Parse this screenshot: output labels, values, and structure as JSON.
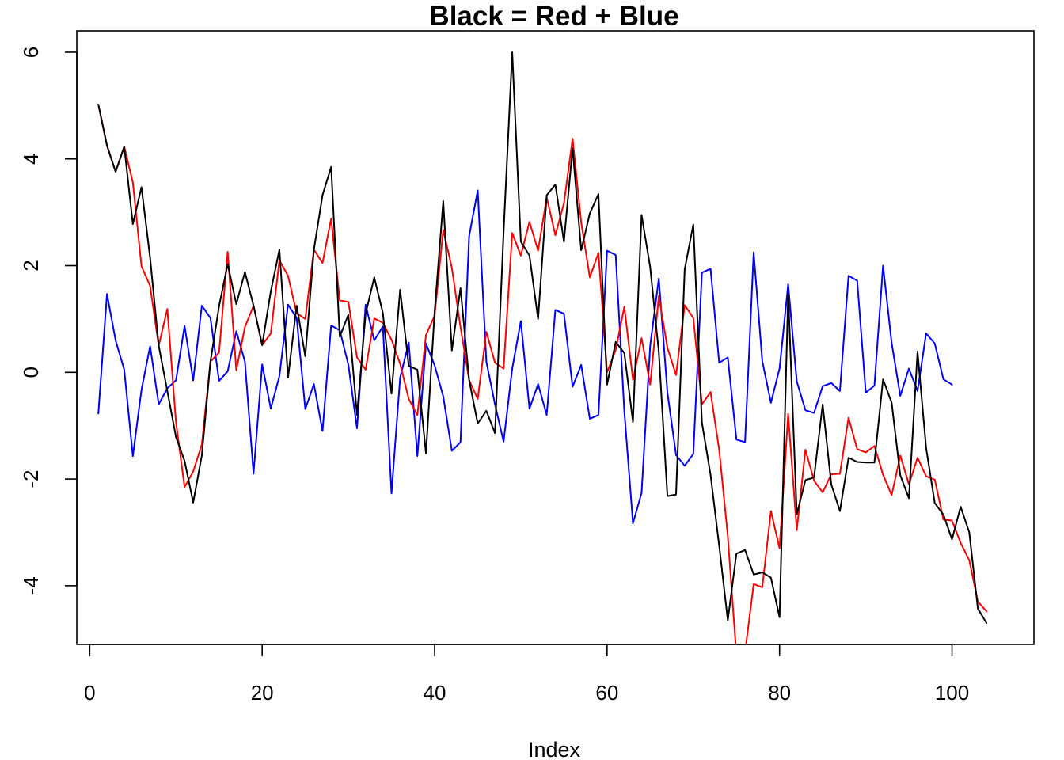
{
  "chart_data": {
    "type": "line",
    "title": "Black = Red + Blue",
    "xlabel": "Index",
    "ylabel": "",
    "xlim": [
      -1.5,
      109.5
    ],
    "ylim": [
      -5.1,
      6.4
    ],
    "x_ticks": [
      0,
      20,
      40,
      60,
      80,
      100
    ],
    "x_tick_labels": [
      "0",
      "20",
      "40",
      "60",
      "80",
      "100"
    ],
    "y_ticks": [
      -4,
      -2,
      0,
      2,
      4,
      6
    ],
    "y_tick_labels": [
      "-4",
      "-2",
      "0",
      "2",
      "4",
      "6"
    ],
    "grid": false,
    "legend": "none",
    "series": [
      {
        "color": "#0000ff",
        "x_start": 1,
        "values": [
          -0.77,
          1.47,
          0.6,
          0.05,
          -1.57,
          -0.33,
          0.49,
          -0.6,
          -0.3,
          -0.15,
          0.87,
          -0.15,
          1.25,
          1.02,
          -0.16,
          0.02,
          0.77,
          0.2,
          -1.9,
          0.15,
          -0.68,
          -0.07,
          1.27,
          1.02,
          -0.69,
          -0.22,
          -1.1,
          0.88,
          0.79,
          0.14,
          -1.05,
          1.27,
          0.6,
          0.86,
          -2.27,
          -0.1,
          0.56,
          -1.57,
          0.54,
          0.13,
          -0.45,
          -1.47,
          -1.31,
          2.55,
          3.41,
          0.2,
          -0.6,
          -1.3,
          0.07,
          0.96,
          -0.68,
          -0.22,
          -0.8,
          1.17,
          1.1,
          -0.27,
          0.14,
          -0.87,
          -0.8,
          2.28,
          2.2,
          -0.73,
          -2.83,
          -2.26,
          0.5,
          1.76,
          -0.38,
          -1.55,
          -1.75,
          -1.53,
          1.87,
          1.94,
          0.18,
          0.28,
          -1.26,
          -1.31,
          2.25,
          0.21,
          -0.57,
          0.07,
          1.65,
          -0.17,
          -0.71,
          -0.76,
          -0.26,
          -0.2,
          -0.35,
          1.81,
          1.72,
          -0.38,
          -0.25,
          2.0,
          0.55,
          -0.44,
          0.07,
          -0.35,
          0.73,
          0.54,
          -0.13,
          -0.23
        ]
      },
      {
        "color": "#ff0000",
        "x_start": 1,
        "values": [
          5.02,
          4.25,
          3.76,
          4.23,
          3.56,
          1.99,
          1.62,
          0.5,
          1.19,
          -0.93,
          -2.15,
          -1.86,
          -1.35,
          0.2,
          0.37,
          2.26,
          0.04,
          0.85,
          1.25,
          0.51,
          0.73,
          2.1,
          1.81,
          1.11,
          1.0,
          2.3,
          2.05,
          2.88,
          1.35,
          1.32,
          0.28,
          0.05,
          1.01,
          0.93,
          0.61,
          0.16,
          -0.5,
          -0.8,
          0.7,
          1.06,
          2.67,
          1.96,
          0.85,
          -0.14,
          -0.5,
          0.76,
          0.18,
          0.07,
          2.61,
          2.19,
          2.82,
          2.28,
          3.28,
          2.57,
          3.17,
          4.38,
          2.81,
          1.78,
          2.24,
          0.0,
          0.42,
          1.23,
          -0.14,
          0.64,
          -0.23,
          1.43,
          0.46,
          -0.05,
          1.26,
          1.02,
          -0.6,
          -0.37,
          -1.45,
          -3.07,
          -5.3,
          -5.25,
          -3.97,
          -4.03,
          -2.6,
          -3.3,
          -0.78,
          -2.96,
          -1.45,
          -2.03,
          -2.25,
          -1.91,
          -1.9,
          -0.85,
          -1.44,
          -1.5,
          -1.38,
          -1.92,
          -2.3,
          -1.56,
          -2.1,
          -1.6,
          -1.95,
          -2.01,
          -2.76,
          -2.78,
          -3.2,
          -3.52,
          -4.3,
          -4.48
        ]
      },
      {
        "color": "#000000",
        "x_start": 1,
        "values": [
          5.02,
          4.25,
          3.76,
          4.23,
          2.78,
          3.47,
          2.15,
          0.5,
          -0.35,
          -1.21,
          -1.66,
          -2.44,
          -1.56,
          0.2,
          1.24,
          2.03,
          1.28,
          1.88,
          1.25,
          0.51,
          1.52,
          2.3,
          -0.1,
          1.25,
          0.3,
          2.3,
          3.32,
          3.85,
          0.67,
          1.08,
          -0.8,
          1.1,
          1.78,
          1.11,
          -0.4,
          1.55,
          0.12,
          0.05,
          -1.52,
          1.13,
          3.21,
          0.41,
          1.58,
          -0.14,
          -0.96,
          -0.72,
          -1.14,
          2.63,
          6.0,
          2.45,
          2.19,
          1.0,
          3.32,
          3.52,
          2.45,
          4.2,
          2.29,
          2.98,
          3.34,
          -0.23,
          0.57,
          0.36,
          -0.93,
          2.95,
          1.97,
          0.38,
          -2.32,
          -2.29,
          1.93,
          2.77,
          -0.94,
          -1.92,
          -3.25,
          -4.65,
          -3.4,
          -3.33,
          -3.79,
          -3.75,
          -3.85,
          -4.59,
          1.48,
          -2.66,
          -2.02,
          -1.97,
          -0.6,
          -2.1,
          -2.6,
          -1.6,
          -1.68,
          -1.69,
          -1.69,
          -0.13,
          -0.57,
          -1.93,
          -2.36,
          0.39,
          -1.42,
          -2.45,
          -2.67,
          -3.13,
          -2.52,
          -3.0,
          -4.43,
          -4.7
        ]
      }
    ]
  }
}
